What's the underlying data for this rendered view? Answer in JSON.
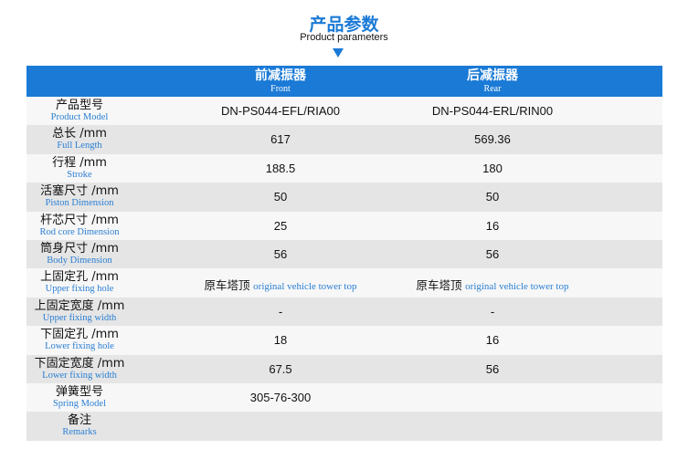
{
  "header": {
    "title": "产品参数",
    "subtitle": "Product parameters",
    "accent": "#1a7ad6"
  },
  "table": {
    "columns": [
      {
        "cn": "前减振器",
        "en": "Front"
      },
      {
        "cn": "后减振器",
        "en": "Rear"
      }
    ],
    "rows": [
      {
        "cn": "产品型号",
        "en": "Product Model",
        "front": "DN-PS044-EFL/RIA00",
        "rear": "DN-PS044-ERL/RIN00"
      },
      {
        "cn": "总长 /mm",
        "en": "Full Length",
        "front": "617",
        "rear": "569.36"
      },
      {
        "cn": "行程 /mm",
        "en": "Stroke",
        "front": "188.5",
        "rear": "180"
      },
      {
        "cn": "活塞尺寸 /mm",
        "en": "Piston Dimension",
        "front": "50",
        "rear": "50"
      },
      {
        "cn": "杆芯尺寸 /mm",
        "en": "Rod core Dimension",
        "front": "25",
        "rear": "16"
      },
      {
        "cn": "筒身尺寸 /mm",
        "en": "Body Dimension",
        "front": "56",
        "rear": "56"
      },
      {
        "cn": "上固定孔 /mm",
        "en": "Upper fixing hole",
        "front_cn": "原车塔顶",
        "front_en": "original vehicle tower top",
        "rear_cn": "原车塔顶",
        "rear_en": "original vehicle tower top"
      },
      {
        "cn": "上固定宽度 /mm",
        "en": "Upper fixing width",
        "front": "-",
        "rear": "-"
      },
      {
        "cn": "下固定孔 /mm",
        "en": "Lower fixing hole",
        "front": "18",
        "rear": "16"
      },
      {
        "cn": "下固定宽度 /mm",
        "en": "Lower fixing width",
        "front": "67.5",
        "rear": "56"
      },
      {
        "cn": "弹簧型号",
        "en": "Spring Model",
        "front": "305-76-300",
        "rear": ""
      },
      {
        "cn": "备注",
        "en": "Remarks",
        "front": "",
        "rear": ""
      }
    ]
  }
}
